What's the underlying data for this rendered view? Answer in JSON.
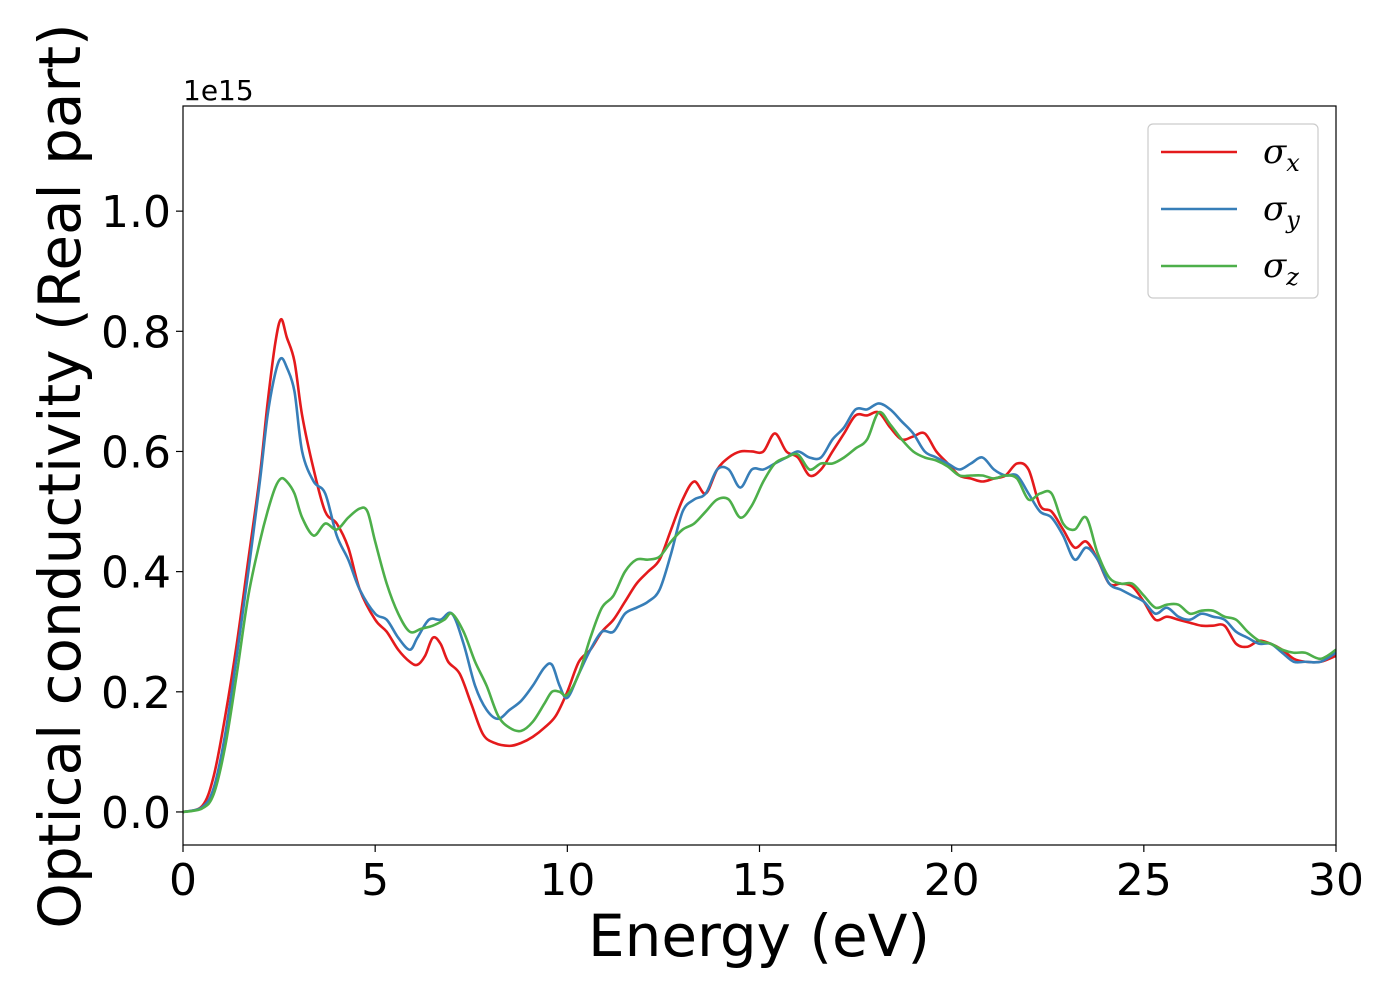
{
  "chart_data": {
    "type": "line",
    "title": "",
    "xlabel": "Energy (eV)",
    "ylabel": "Optical conductivity (Real part)",
    "y_offset_label": "1e15",
    "xlim": [
      0,
      30
    ],
    "ylim": [
      -0.055,
      1.175
    ],
    "x_ticks": [
      0,
      5,
      10,
      15,
      20,
      25,
      30
    ],
    "x_tick_labels": [
      "0",
      "5",
      "10",
      "15",
      "20",
      "25",
      "30"
    ],
    "y_ticks": [
      0.0,
      0.2,
      0.4,
      0.6,
      0.8,
      1.0
    ],
    "y_tick_labels": [
      "0.0",
      "0.2",
      "0.4",
      "0.6",
      "0.8",
      "1.0"
    ],
    "grid": false,
    "legend_position": "top-right",
    "series": [
      {
        "name": "σ",
        "subscript": "x",
        "color": "#e41a1c",
        "points": [
          [
            0,
            0
          ],
          [
            0.5,
            0.01
          ],
          [
            0.8,
            0.06
          ],
          [
            1.1,
            0.16
          ],
          [
            1.4,
            0.28
          ],
          [
            1.7,
            0.42
          ],
          [
            2.0,
            0.56
          ],
          [
            2.2,
            0.68
          ],
          [
            2.4,
            0.78
          ],
          [
            2.55,
            0.82
          ],
          [
            2.7,
            0.79
          ],
          [
            2.9,
            0.75
          ],
          [
            3.1,
            0.66
          ],
          [
            3.4,
            0.57
          ],
          [
            3.7,
            0.5
          ],
          [
            4.0,
            0.48
          ],
          [
            4.3,
            0.44
          ],
          [
            4.6,
            0.37
          ],
          [
            5.0,
            0.32
          ],
          [
            5.3,
            0.3
          ],
          [
            5.6,
            0.27
          ],
          [
            5.9,
            0.25
          ],
          [
            6.1,
            0.245
          ],
          [
            6.3,
            0.26
          ],
          [
            6.5,
            0.29
          ],
          [
            6.7,
            0.28
          ],
          [
            6.9,
            0.25
          ],
          [
            7.2,
            0.23
          ],
          [
            7.5,
            0.18
          ],
          [
            7.8,
            0.13
          ],
          [
            8.1,
            0.115
          ],
          [
            8.5,
            0.11
          ],
          [
            8.8,
            0.115
          ],
          [
            9.1,
            0.125
          ],
          [
            9.4,
            0.14
          ],
          [
            9.7,
            0.16
          ],
          [
            10.0,
            0.2
          ],
          [
            10.3,
            0.25
          ],
          [
            10.6,
            0.27
          ],
          [
            10.9,
            0.3
          ],
          [
            11.2,
            0.32
          ],
          [
            11.5,
            0.35
          ],
          [
            11.8,
            0.38
          ],
          [
            12.1,
            0.4
          ],
          [
            12.4,
            0.42
          ],
          [
            12.7,
            0.47
          ],
          [
            13.0,
            0.52
          ],
          [
            13.3,
            0.55
          ],
          [
            13.6,
            0.53
          ],
          [
            13.9,
            0.57
          ],
          [
            14.2,
            0.59
          ],
          [
            14.5,
            0.6
          ],
          [
            14.8,
            0.6
          ],
          [
            15.1,
            0.6
          ],
          [
            15.4,
            0.63
          ],
          [
            15.7,
            0.6
          ],
          [
            16.0,
            0.59
          ],
          [
            16.3,
            0.56
          ],
          [
            16.6,
            0.57
          ],
          [
            16.9,
            0.6
          ],
          [
            17.2,
            0.63
          ],
          [
            17.5,
            0.66
          ],
          [
            17.8,
            0.66
          ],
          [
            18.1,
            0.665
          ],
          [
            18.4,
            0.64
          ],
          [
            18.7,
            0.62
          ],
          [
            19.0,
            0.625
          ],
          [
            19.3,
            0.63
          ],
          [
            19.6,
            0.6
          ],
          [
            19.9,
            0.58
          ],
          [
            20.2,
            0.56
          ],
          [
            20.5,
            0.555
          ],
          [
            20.8,
            0.55
          ],
          [
            21.1,
            0.555
          ],
          [
            21.4,
            0.56
          ],
          [
            21.7,
            0.58
          ],
          [
            22.0,
            0.57
          ],
          [
            22.3,
            0.51
          ],
          [
            22.6,
            0.5
          ],
          [
            22.9,
            0.47
          ],
          [
            23.2,
            0.44
          ],
          [
            23.5,
            0.45
          ],
          [
            23.8,
            0.42
          ],
          [
            24.1,
            0.38
          ],
          [
            24.4,
            0.38
          ],
          [
            24.7,
            0.375
          ],
          [
            25.0,
            0.35
          ],
          [
            25.3,
            0.32
          ],
          [
            25.6,
            0.325
          ],
          [
            25.9,
            0.32
          ],
          [
            26.2,
            0.315
          ],
          [
            26.5,
            0.31
          ],
          [
            26.8,
            0.31
          ],
          [
            27.1,
            0.31
          ],
          [
            27.4,
            0.28
          ],
          [
            27.7,
            0.275
          ],
          [
            28.0,
            0.285
          ],
          [
            28.3,
            0.28
          ],
          [
            28.6,
            0.27
          ],
          [
            28.9,
            0.255
          ],
          [
            29.2,
            0.25
          ],
          [
            29.6,
            0.25
          ],
          [
            30.0,
            0.26
          ]
        ]
      },
      {
        "name": "σ",
        "subscript": "y",
        "color": "#377eb8",
        "points": [
          [
            0,
            0
          ],
          [
            0.5,
            0.008
          ],
          [
            0.8,
            0.04
          ],
          [
            1.1,
            0.13
          ],
          [
            1.4,
            0.26
          ],
          [
            1.7,
            0.4
          ],
          [
            2.0,
            0.55
          ],
          [
            2.2,
            0.66
          ],
          [
            2.4,
            0.73
          ],
          [
            2.55,
            0.755
          ],
          [
            2.7,
            0.74
          ],
          [
            2.9,
            0.7
          ],
          [
            3.1,
            0.6
          ],
          [
            3.4,
            0.55
          ],
          [
            3.7,
            0.53
          ],
          [
            4.0,
            0.46
          ],
          [
            4.3,
            0.42
          ],
          [
            4.6,
            0.37
          ],
          [
            5.0,
            0.33
          ],
          [
            5.3,
            0.32
          ],
          [
            5.6,
            0.29
          ],
          [
            5.9,
            0.27
          ],
          [
            6.1,
            0.29
          ],
          [
            6.4,
            0.32
          ],
          [
            6.7,
            0.32
          ],
          [
            7.0,
            0.33
          ],
          [
            7.3,
            0.28
          ],
          [
            7.6,
            0.21
          ],
          [
            7.9,
            0.17
          ],
          [
            8.2,
            0.155
          ],
          [
            8.5,
            0.17
          ],
          [
            8.8,
            0.185
          ],
          [
            9.1,
            0.21
          ],
          [
            9.4,
            0.24
          ],
          [
            9.6,
            0.245
          ],
          [
            9.8,
            0.21
          ],
          [
            10.0,
            0.19
          ],
          [
            10.3,
            0.23
          ],
          [
            10.6,
            0.27
          ],
          [
            10.9,
            0.3
          ],
          [
            11.2,
            0.3
          ],
          [
            11.5,
            0.33
          ],
          [
            11.8,
            0.34
          ],
          [
            12.1,
            0.35
          ],
          [
            12.4,
            0.37
          ],
          [
            12.7,
            0.43
          ],
          [
            13.0,
            0.5
          ],
          [
            13.3,
            0.52
          ],
          [
            13.6,
            0.53
          ],
          [
            13.9,
            0.57
          ],
          [
            14.2,
            0.57
          ],
          [
            14.5,
            0.54
          ],
          [
            14.8,
            0.57
          ],
          [
            15.1,
            0.57
          ],
          [
            15.4,
            0.58
          ],
          [
            15.7,
            0.59
          ],
          [
            16.0,
            0.6
          ],
          [
            16.3,
            0.59
          ],
          [
            16.6,
            0.59
          ],
          [
            16.9,
            0.62
          ],
          [
            17.2,
            0.64
          ],
          [
            17.5,
            0.67
          ],
          [
            17.8,
            0.67
          ],
          [
            18.1,
            0.68
          ],
          [
            18.4,
            0.67
          ],
          [
            18.7,
            0.65
          ],
          [
            19.0,
            0.63
          ],
          [
            19.3,
            0.6
          ],
          [
            19.6,
            0.59
          ],
          [
            19.9,
            0.58
          ],
          [
            20.2,
            0.57
          ],
          [
            20.5,
            0.58
          ],
          [
            20.8,
            0.59
          ],
          [
            21.1,
            0.57
          ],
          [
            21.4,
            0.56
          ],
          [
            21.7,
            0.56
          ],
          [
            22.0,
            0.53
          ],
          [
            22.3,
            0.5
          ],
          [
            22.6,
            0.49
          ],
          [
            22.9,
            0.46
          ],
          [
            23.2,
            0.42
          ],
          [
            23.5,
            0.44
          ],
          [
            23.8,
            0.42
          ],
          [
            24.1,
            0.38
          ],
          [
            24.4,
            0.37
          ],
          [
            24.7,
            0.36
          ],
          [
            25.0,
            0.35
          ],
          [
            25.3,
            0.33
          ],
          [
            25.6,
            0.34
          ],
          [
            25.9,
            0.325
          ],
          [
            26.2,
            0.32
          ],
          [
            26.5,
            0.33
          ],
          [
            26.8,
            0.325
          ],
          [
            27.1,
            0.32
          ],
          [
            27.4,
            0.3
          ],
          [
            27.7,
            0.29
          ],
          [
            28.0,
            0.28
          ],
          [
            28.3,
            0.28
          ],
          [
            28.6,
            0.265
          ],
          [
            28.9,
            0.25
          ],
          [
            29.2,
            0.25
          ],
          [
            29.6,
            0.25
          ],
          [
            30.0,
            0.265
          ]
        ]
      },
      {
        "name": "σ",
        "subscript": "z",
        "color": "#4daf4a",
        "points": [
          [
            0,
            0
          ],
          [
            0.5,
            0.006
          ],
          [
            0.8,
            0.03
          ],
          [
            1.1,
            0.11
          ],
          [
            1.4,
            0.23
          ],
          [
            1.7,
            0.36
          ],
          [
            2.0,
            0.45
          ],
          [
            2.2,
            0.5
          ],
          [
            2.4,
            0.54
          ],
          [
            2.55,
            0.555
          ],
          [
            2.7,
            0.55
          ],
          [
            2.9,
            0.53
          ],
          [
            3.1,
            0.49
          ],
          [
            3.4,
            0.46
          ],
          [
            3.7,
            0.48
          ],
          [
            4.0,
            0.47
          ],
          [
            4.3,
            0.49
          ],
          [
            4.6,
            0.505
          ],
          [
            4.8,
            0.5
          ],
          [
            5.0,
            0.45
          ],
          [
            5.3,
            0.38
          ],
          [
            5.6,
            0.33
          ],
          [
            5.9,
            0.3
          ],
          [
            6.2,
            0.305
          ],
          [
            6.5,
            0.31
          ],
          [
            6.8,
            0.32
          ],
          [
            7.0,
            0.33
          ],
          [
            7.3,
            0.3
          ],
          [
            7.6,
            0.25
          ],
          [
            7.9,
            0.21
          ],
          [
            8.2,
            0.16
          ],
          [
            8.5,
            0.14
          ],
          [
            8.8,
            0.135
          ],
          [
            9.1,
            0.15
          ],
          [
            9.4,
            0.18
          ],
          [
            9.6,
            0.2
          ],
          [
            9.8,
            0.2
          ],
          [
            10.0,
            0.195
          ],
          [
            10.3,
            0.23
          ],
          [
            10.6,
            0.29
          ],
          [
            10.9,
            0.34
          ],
          [
            11.2,
            0.36
          ],
          [
            11.5,
            0.4
          ],
          [
            11.8,
            0.42
          ],
          [
            12.1,
            0.42
          ],
          [
            12.4,
            0.425
          ],
          [
            12.7,
            0.45
          ],
          [
            13.0,
            0.47
          ],
          [
            13.3,
            0.48
          ],
          [
            13.6,
            0.5
          ],
          [
            13.9,
            0.52
          ],
          [
            14.2,
            0.52
          ],
          [
            14.5,
            0.49
          ],
          [
            14.8,
            0.51
          ],
          [
            15.1,
            0.55
          ],
          [
            15.4,
            0.58
          ],
          [
            15.7,
            0.59
          ],
          [
            16.0,
            0.595
          ],
          [
            16.3,
            0.57
          ],
          [
            16.6,
            0.58
          ],
          [
            16.9,
            0.58
          ],
          [
            17.2,
            0.59
          ],
          [
            17.5,
            0.605
          ],
          [
            17.8,
            0.62
          ],
          [
            18.1,
            0.665
          ],
          [
            18.4,
            0.645
          ],
          [
            18.7,
            0.62
          ],
          [
            19.0,
            0.6
          ],
          [
            19.3,
            0.59
          ],
          [
            19.6,
            0.585
          ],
          [
            19.9,
            0.575
          ],
          [
            20.2,
            0.56
          ],
          [
            20.5,
            0.56
          ],
          [
            20.8,
            0.56
          ],
          [
            21.1,
            0.555
          ],
          [
            21.4,
            0.56
          ],
          [
            21.7,
            0.555
          ],
          [
            22.0,
            0.52
          ],
          [
            22.3,
            0.53
          ],
          [
            22.6,
            0.53
          ],
          [
            22.9,
            0.48
          ],
          [
            23.2,
            0.47
          ],
          [
            23.5,
            0.49
          ],
          [
            23.8,
            0.43
          ],
          [
            24.1,
            0.39
          ],
          [
            24.4,
            0.38
          ],
          [
            24.7,
            0.38
          ],
          [
            25.0,
            0.36
          ],
          [
            25.3,
            0.34
          ],
          [
            25.6,
            0.345
          ],
          [
            25.9,
            0.345
          ],
          [
            26.2,
            0.33
          ],
          [
            26.5,
            0.335
          ],
          [
            26.8,
            0.335
          ],
          [
            27.1,
            0.325
          ],
          [
            27.4,
            0.32
          ],
          [
            27.7,
            0.3
          ],
          [
            28.0,
            0.285
          ],
          [
            28.3,
            0.28
          ],
          [
            28.6,
            0.27
          ],
          [
            28.9,
            0.265
          ],
          [
            29.2,
            0.265
          ],
          [
            29.6,
            0.255
          ],
          [
            30.0,
            0.27
          ]
        ]
      }
    ]
  }
}
